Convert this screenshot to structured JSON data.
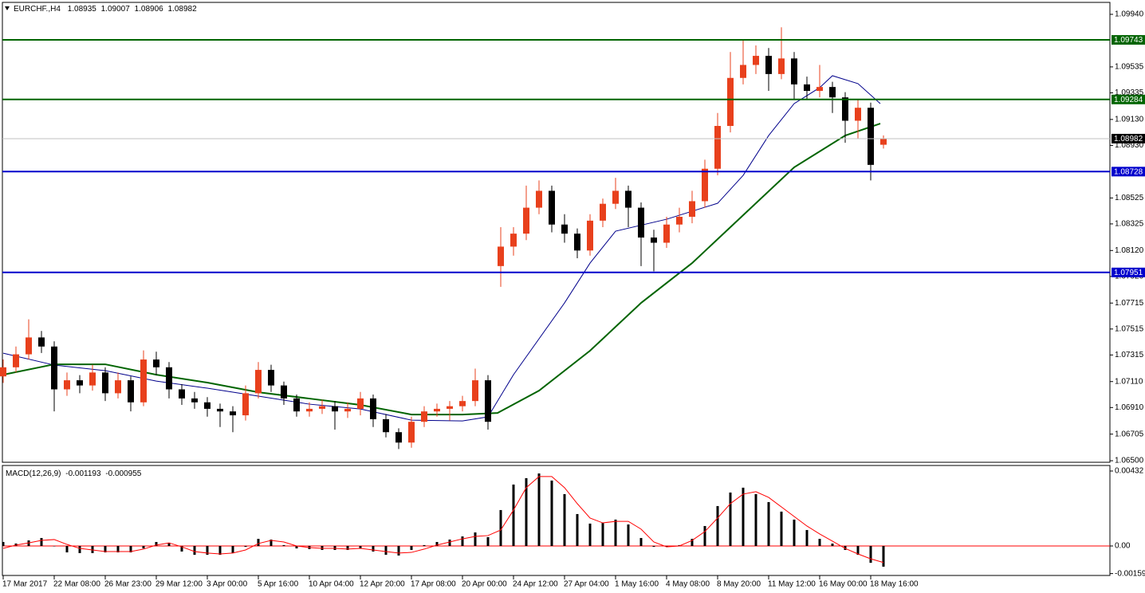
{
  "chart_data": [
    {
      "type": "candlestick",
      "title": "EURCHF.,H4",
      "x": [
        0,
        4,
        8,
        12,
        16,
        20,
        24,
        28,
        32,
        36,
        40,
        44,
        48,
        52,
        56,
        60,
        64,
        68,
        72,
        76,
        80,
        84,
        88,
        92,
        96,
        100,
        104,
        108,
        112,
        116,
        120,
        124,
        128,
        132,
        136,
        140,
        144,
        148,
        152,
        156,
        160,
        164,
        168,
        172,
        176,
        180,
        184,
        188,
        192,
        196,
        200,
        204,
        208,
        212,
        216,
        220,
        224,
        228,
        232,
        236,
        240,
        244,
        248,
        252,
        256,
        260,
        264,
        268,
        272,
        276
      ],
      "open": [
        1.0715,
        1.0722,
        1.0732,
        1.0745,
        1.0738,
        1.0705,
        1.0712,
        1.0708,
        1.0718,
        1.0702,
        1.0712,
        1.0695,
        1.0728,
        1.0722,
        1.0705,
        1.0698,
        1.0695,
        1.069,
        1.0688,
        1.0685,
        1.0702,
        1.072,
        1.0708,
        1.0698,
        1.0688,
        1.069,
        1.0692,
        1.0688,
        1.069,
        1.0698,
        1.0682,
        1.0672,
        1.0664,
        1.068,
        1.0688,
        1.069,
        1.0692,
        1.0696,
        1.0712,
        1.08,
        1.0815,
        1.0825,
        1.0845,
        1.0858,
        1.0832,
        1.0825,
        1.0812,
        1.0835,
        1.0848,
        1.0858,
        1.0845,
        1.0822,
        1.0818,
        1.0832,
        1.0838,
        1.085,
        1.0875,
        1.0908,
        1.0945,
        1.0955,
        1.0962,
        1.0948,
        1.096,
        1.094,
        1.0935,
        1.0938,
        1.093,
        1.0912,
        1.0922,
        1.08935
      ],
      "high": [
        1.0728,
        1.0738,
        1.0759,
        1.075,
        1.0742,
        1.0718,
        1.0716,
        1.0724,
        1.0722,
        1.0718,
        1.0715,
        1.0735,
        1.0734,
        1.0726,
        1.0709,
        1.0703,
        1.0699,
        1.0694,
        1.0692,
        1.0708,
        1.0726,
        1.0724,
        1.0711,
        1.0701,
        1.0695,
        1.0697,
        1.0696,
        1.0695,
        1.0703,
        1.0701,
        1.0686,
        1.0675,
        1.0684,
        1.0692,
        1.0694,
        1.0696,
        1.07,
        1.0721,
        1.0716,
        1.083,
        1.083,
        1.0862,
        1.0866,
        1.0862,
        1.084,
        1.0829,
        1.084,
        1.0852,
        1.0868,
        1.0862,
        1.0849,
        1.0828,
        1.0838,
        1.0845,
        1.0858,
        1.0882,
        1.0918,
        1.0965,
        1.0974,
        1.097,
        1.0968,
        1.0984,
        1.0965,
        1.0946,
        1.0955,
        1.0942,
        1.0934,
        1.0928,
        1.0926,
        1.09007
      ],
      "low": [
        1.071,
        1.0718,
        1.0728,
        1.0733,
        1.0688,
        1.07,
        1.0702,
        1.0704,
        1.0696,
        1.0698,
        1.0688,
        1.0692,
        1.0716,
        1.0698,
        1.0693,
        1.069,
        1.0684,
        1.0676,
        1.0672,
        1.0681,
        1.0698,
        1.0703,
        1.0693,
        1.0684,
        1.0684,
        1.0686,
        1.0674,
        1.0683,
        1.0685,
        1.0676,
        1.0668,
        1.0659,
        1.066,
        1.0676,
        1.0684,
        1.0681,
        1.0688,
        1.0692,
        1.0674,
        1.0784,
        1.0808,
        1.082,
        1.084,
        1.0826,
        1.0818,
        1.0806,
        1.0808,
        1.083,
        1.0844,
        1.083,
        1.08,
        1.0796,
        1.0814,
        1.0826,
        1.0833,
        1.0845,
        1.087,
        1.0903,
        1.094,
        1.0948,
        1.0935,
        1.0944,
        1.0928,
        1.0928,
        1.093,
        1.0918,
        1.0895,
        1.0898,
        1.0866,
        1.08906
      ],
      "close": [
        1.0722,
        1.0732,
        1.0745,
        1.0738,
        1.0705,
        1.0712,
        1.0708,
        1.0718,
        1.0702,
        1.0712,
        1.0695,
        1.0728,
        1.0722,
        1.0705,
        1.0698,
        1.0695,
        1.069,
        1.0688,
        1.0685,
        1.0702,
        1.072,
        1.0708,
        1.0698,
        1.0688,
        1.069,
        1.0692,
        1.0688,
        1.069,
        1.0698,
        1.0682,
        1.0672,
        1.0664,
        1.068,
        1.0688,
        1.069,
        1.0692,
        1.0696,
        1.0712,
        1.068,
        1.0815,
        1.0825,
        1.0845,
        1.0858,
        1.0832,
        1.0825,
        1.0812,
        1.0835,
        1.0848,
        1.0858,
        1.0845,
        1.0822,
        1.0818,
        1.0832,
        1.0838,
        1.085,
        1.0875,
        1.0908,
        1.0945,
        1.0955,
        1.0962,
        1.0948,
        1.096,
        1.094,
        1.0935,
        1.0938,
        1.093,
        1.0912,
        1.0922,
        1.0878,
        1.08982
      ],
      "up_color": "#e8401c",
      "down_color": "#000000",
      "lines": [
        {
          "color": "#00008b",
          "width": 1,
          "x": [
            0,
            16,
            32,
            48,
            64,
            80,
            96,
            112,
            128,
            144,
            152,
            160,
            176,
            184,
            192,
            208,
            224,
            232,
            240,
            248,
            256,
            260,
            268,
            275
          ],
          "values": [
            1.07329,
            1.07237,
            1.07194,
            1.07114,
            1.07059,
            1.06998,
            1.06936,
            1.06899,
            1.06813,
            1.06807,
            1.06838,
            1.07163,
            1.07716,
            1.08023,
            1.08269,
            1.08361,
            1.08484,
            1.08699,
            1.09006,
            1.09252,
            1.09375,
            1.09467,
            1.09406,
            1.09252
          ]
        },
        {
          "color": "#006400",
          "width": 2,
          "x": [
            0,
            16,
            32,
            48,
            64,
            80,
            96,
            112,
            128,
            144,
            155,
            168,
            184,
            200,
            216,
            232,
            248,
            264,
            275
          ],
          "values": [
            1.07163,
            1.07243,
            1.07243,
            1.07163,
            1.07102,
            1.07028,
            1.06979,
            1.0693,
            1.06856,
            1.06856,
            1.06868,
            1.0704,
            1.07348,
            1.07716,
            1.08023,
            1.08392,
            1.08761,
            1.09006,
            1.09098
          ]
        }
      ],
      "levels": [
        {
          "value": 1.09743,
          "color": "#006400"
        },
        {
          "value": 1.09284,
          "color": "#006400"
        },
        {
          "value": 1.08728,
          "color": "#0000cc"
        },
        {
          "value": 1.07951,
          "color": "#0000cc"
        }
      ],
      "xlim": [
        -0.25,
        347
      ],
      "ylim": [
        1.06488,
        1.10032
      ],
      "yticks": [
        {
          "value": 1.0994,
          "label": "1.09940"
        },
        {
          "value": 1.09535,
          "label": "1.09535"
        },
        {
          "value": 1.09335,
          "label": "1.09335"
        },
        {
          "value": 1.0913,
          "label": "1.09130"
        },
        {
          "value": 1.0893,
          "label": "1.08930"
        },
        {
          "value": 1.08525,
          "label": "1.08525"
        },
        {
          "value": 1.08325,
          "label": "1.08325"
        },
        {
          "value": 1.0812,
          "label": "1.08120"
        },
        {
          "value": 1.0792,
          "label": "1.07920"
        },
        {
          "value": 1.07715,
          "label": "1.07715"
        },
        {
          "value": 1.07515,
          "label": "1.07515"
        },
        {
          "value": 1.07315,
          "label": "1.07315"
        },
        {
          "value": 1.0711,
          "label": "1.07110"
        },
        {
          "value": 1.0691,
          "label": "1.06910"
        },
        {
          "value": 1.06705,
          "label": "1.06705"
        },
        {
          "value": 1.065,
          "label": "1.06500"
        }
      ],
      "xticks": [
        {
          "value": 0,
          "label": "17 Mar 2017"
        },
        {
          "value": 16,
          "label": "22 Mar 08:00"
        },
        {
          "value": 32,
          "label": "26 Mar 23:00"
        },
        {
          "value": 48,
          "label": "29 Mar 12:00"
        },
        {
          "value": 64,
          "label": "3 Apr 00:00"
        },
        {
          "value": 80,
          "label": "5 Apr 16:00"
        },
        {
          "value": 96,
          "label": "10 Apr 04:00"
        },
        {
          "value": 112,
          "label": "12 Apr 20:00"
        },
        {
          "value": 128,
          "label": "17 Apr 08:00"
        },
        {
          "value": 144,
          "label": "20 Apr 00:00"
        },
        {
          "value": 160,
          "label": "24 Apr 12:00"
        },
        {
          "value": 176,
          "label": "27 Apr 04:00"
        },
        {
          "value": 192,
          "label": "1 May 16:00"
        },
        {
          "value": 208,
          "label": "4 May 08:00"
        },
        {
          "value": 224,
          "label": "8 May 20:00"
        },
        {
          "value": 240,
          "label": "11 May 12:00"
        },
        {
          "value": 256,
          "label": "16 May 00:00"
        },
        {
          "value": 272,
          "label": "18 May 16:00"
        }
      ]
    },
    {
      "type": "macd",
      "title": "MACD(12,26,9)",
      "x": [
        0,
        4,
        8,
        12,
        16,
        20,
        24,
        28,
        32,
        36,
        40,
        44,
        48,
        52,
        56,
        60,
        64,
        68,
        72,
        76,
        80,
        84,
        88,
        92,
        96,
        100,
        104,
        108,
        112,
        116,
        120,
        124,
        128,
        132,
        136,
        140,
        144,
        148,
        152,
        156,
        160,
        164,
        168,
        172,
        176,
        180,
        184,
        188,
        192,
        196,
        200,
        204,
        208,
        212,
        216,
        220,
        224,
        228,
        232,
        236,
        240,
        244,
        248,
        252,
        256,
        260,
        264,
        268,
        272,
        276
      ],
      "histogram": [
        0.00023,
        0.00014,
        0.00032,
        0.00046,
        0,
        -0.00037,
        -0.00041,
        -0.00041,
        -0.00037,
        -0.00037,
        -0.00037,
        -0.00014,
        0.00023,
        0.00018,
        -0.00032,
        -0.00051,
        -0.00051,
        -0.00051,
        -0.00041,
        -5e-05,
        0.00041,
        0.00037,
        5e-05,
        -0.00014,
        -0.00018,
        -0.00023,
        -0.00023,
        -0.00023,
        -0.00014,
        -0.00032,
        -0.00051,
        -0.00055,
        -0.00023,
        5e-05,
        0.00023,
        0.00037,
        0.00055,
        0.00078,
        0.00051,
        0.00207,
        0.00354,
        0.00391,
        0.00418,
        0.00377,
        0.00299,
        0.00184,
        0.00129,
        0.00133,
        0.00152,
        0.00124,
        0.00046,
        -5e-05,
        -5e-05,
        5e-05,
        0.00041,
        0.00115,
        0.0023,
        0.00308,
        0.00336,
        0.00299,
        0.00253,
        0.00198,
        0.00152,
        0.00092,
        0.00041,
        0.00014,
        -0.00023,
        -0.00051,
        -0.00097,
        -0.001193
      ],
      "signal": [
        -0.00014,
        5e-05,
        0.00018,
        0.00032,
        0.00037,
        9e-05,
        -0.00014,
        -0.00023,
        -0.00032,
        -0.00032,
        -0.00032,
        -0.00018,
        5e-05,
        0.00018,
        -5e-05,
        -0.00032,
        -0.00041,
        -0.00046,
        -0.00041,
        -0.00023,
        0.00014,
        0.00032,
        0.00023,
        0,
        -9e-05,
        -0.00014,
        -0.00014,
        -0.00018,
        -0.00014,
        -0.00023,
        -0.00032,
        -0.00041,
        -0.00037,
        -0.00018,
        5e-05,
        0.00023,
        0.00041,
        0.00055,
        0.0006,
        0.00092,
        0.00207,
        0.00336,
        0.004,
        0.004,
        0.00336,
        0.00244,
        0.00161,
        0.00133,
        0.00142,
        0.00142,
        0.00097,
        0.00023,
        -5e-05,
        0,
        0.00032,
        0.00083,
        0.00161,
        0.00244,
        0.00299,
        0.00313,
        0.0028,
        0.00225,
        0.0017,
        0.00115,
        0.00069,
        0.00028,
        -0.00014,
        -0.00046,
        -0.00074,
        -0.000955
      ],
      "histogram_color": "#000000",
      "signal_color": "#ff0000",
      "ylim": [
        -0.0017,
        0.00464
      ],
      "yticks": [
        0.00432,
        {
          "value": 0,
          "label": "0.00"
        },
        -0.001591
      ]
    }
  ]
}
